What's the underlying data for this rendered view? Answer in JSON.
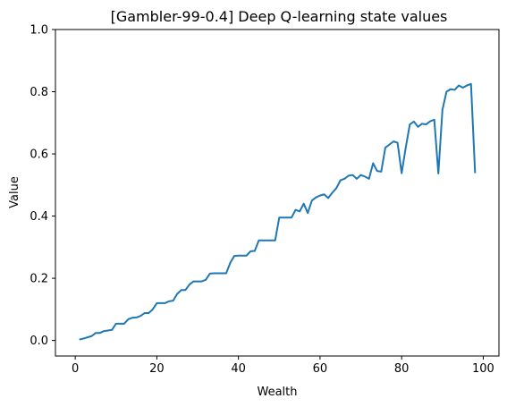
{
  "chart_data": {
    "type": "line",
    "title": "[Gambler-99-0.4] Deep Q-learning state values",
    "xlabel": "Wealth",
    "ylabel": "Value",
    "xlim": [
      -4.85,
      103.85
    ],
    "ylim": [
      -0.05,
      1.0
    ],
    "xticks": [
      0,
      20,
      40,
      60,
      80,
      100
    ],
    "yticks": [
      0.0,
      0.2,
      0.4,
      0.6,
      0.8,
      1.0
    ],
    "xtick_labels": [
      "0",
      "20",
      "40",
      "60",
      "80",
      "100"
    ],
    "ytick_labels": [
      "0.0",
      "0.2",
      "0.4",
      "0.6",
      "0.8",
      "1.0"
    ],
    "grid": false,
    "line_color": "#1f77b4",
    "series": [
      {
        "x": [
          1,
          2,
          3,
          4,
          5,
          6,
          7,
          8,
          9,
          10,
          11,
          12,
          13,
          14,
          15,
          16,
          17,
          18,
          19,
          20,
          21,
          22,
          23,
          24,
          25,
          26,
          27,
          28,
          29,
          30,
          31,
          32,
          33,
          34,
          35,
          36,
          37,
          38,
          39,
          40,
          41,
          42,
          43,
          44,
          45,
          46,
          47,
          48,
          49,
          50,
          51,
          52,
          53,
          54,
          55,
          56,
          57,
          58,
          59,
          60,
          61,
          62,
          63,
          64,
          65,
          66,
          67,
          68,
          69,
          70,
          71,
          72,
          73,
          74,
          75,
          76,
          77,
          78,
          79,
          80,
          81,
          82,
          83,
          84,
          85,
          86,
          87,
          88,
          89,
          90,
          91,
          92,
          93,
          94,
          95,
          96,
          97,
          98
        ],
        "values": [
          0.003,
          0.006,
          0.01,
          0.014,
          0.024,
          0.024,
          0.03,
          0.032,
          0.034,
          0.054,
          0.054,
          0.054,
          0.068,
          0.073,
          0.074,
          0.079,
          0.088,
          0.088,
          0.1,
          0.12,
          0.12,
          0.12,
          0.126,
          0.128,
          0.15,
          0.162,
          0.162,
          0.18,
          0.19,
          0.19,
          0.19,
          0.195,
          0.215,
          0.216,
          0.216,
          0.216,
          0.216,
          0.25,
          0.272,
          0.273,
          0.273,
          0.273,
          0.287,
          0.288,
          0.322,
          0.322,
          0.322,
          0.322,
          0.322,
          0.395,
          0.395,
          0.395,
          0.395,
          0.42,
          0.415,
          0.44,
          0.41,
          0.45,
          0.46,
          0.466,
          0.47,
          0.458,
          0.475,
          0.49,
          0.515,
          0.52,
          0.53,
          0.532,
          0.52,
          0.532,
          0.527,
          0.52,
          0.57,
          0.545,
          0.543,
          0.62,
          0.63,
          0.64,
          0.636,
          0.538,
          0.62,
          0.695,
          0.704,
          0.687,
          0.697,
          0.695,
          0.705,
          0.71,
          0.537,
          0.742,
          0.8,
          0.808,
          0.806,
          0.82,
          0.813,
          0.82,
          0.825,
          0.538
        ]
      }
    ]
  }
}
